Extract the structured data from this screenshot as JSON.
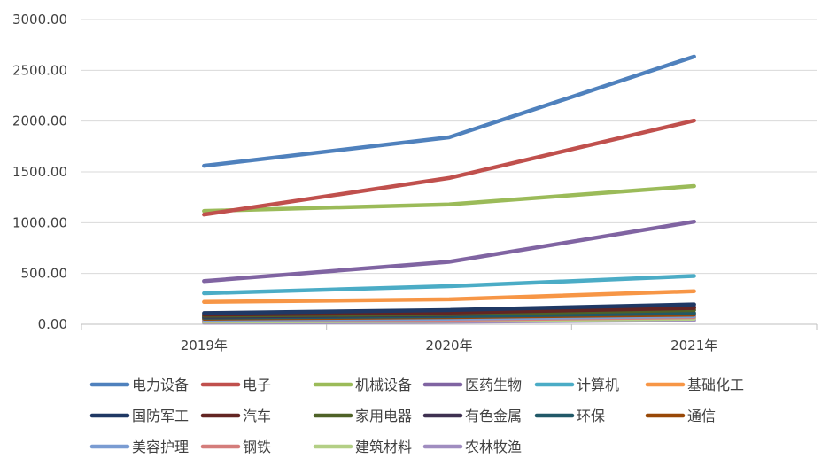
{
  "chart_data": {
    "type": "line",
    "title": "",
    "xlabel": "",
    "ylabel": "",
    "categories": [
      "2019年",
      "2020年",
      "2021年"
    ],
    "ylim": [
      0,
      3000
    ],
    "yticks": [
      "0.00",
      "500.00",
      "1000.00",
      "1500.00",
      "2000.00",
      "2500.00",
      "3000.00"
    ],
    "grid": true,
    "legend_position": "bottom",
    "series": [
      {
        "name": "电力设备",
        "color": "#4F81BD",
        "values": [
          1560,
          1840,
          2635
        ]
      },
      {
        "name": "电子",
        "color": "#C0504D",
        "values": [
          1080,
          1440,
          2005
        ]
      },
      {
        "name": "机械设备",
        "color": "#9BBB59",
        "values": [
          1115,
          1180,
          1360
        ]
      },
      {
        "name": "医药生物",
        "color": "#8064A2",
        "values": [
          425,
          615,
          1010
        ]
      },
      {
        "name": "计算机",
        "color": "#4BACC6",
        "values": [
          305,
          375,
          475
        ]
      },
      {
        "name": "基础化工",
        "color": "#F79646",
        "values": [
          220,
          245,
          325
        ]
      },
      {
        "name": "国防军工",
        "color": "#1F3864",
        "values": [
          110,
          140,
          195
        ]
      },
      {
        "name": "汽车",
        "color": "#632523",
        "values": [
          95,
          115,
          160
        ]
      },
      {
        "name": "家用电器",
        "color": "#4F6228",
        "values": [
          85,
          100,
          140
        ]
      },
      {
        "name": "有色金属",
        "color": "#3F3151",
        "values": [
          75,
          95,
          170
        ]
      },
      {
        "name": "环保",
        "color": "#215968",
        "values": [
          65,
          80,
          110
        ]
      },
      {
        "name": "通信",
        "color": "#984807",
        "values": [
          55,
          70,
          95
        ]
      },
      {
        "name": "美容护理",
        "color": "#7A9CD2",
        "values": [
          45,
          55,
          80
        ]
      },
      {
        "name": "钢铁",
        "color": "#D47D7B",
        "values": [
          35,
          45,
          70
        ]
      },
      {
        "name": "建筑材料",
        "color": "#B3CF85",
        "values": [
          25,
          35,
          55
        ]
      },
      {
        "name": "农林牧渔",
        "color": "#A08DC0",
        "values": [
          15,
          25,
          40
        ]
      }
    ]
  }
}
